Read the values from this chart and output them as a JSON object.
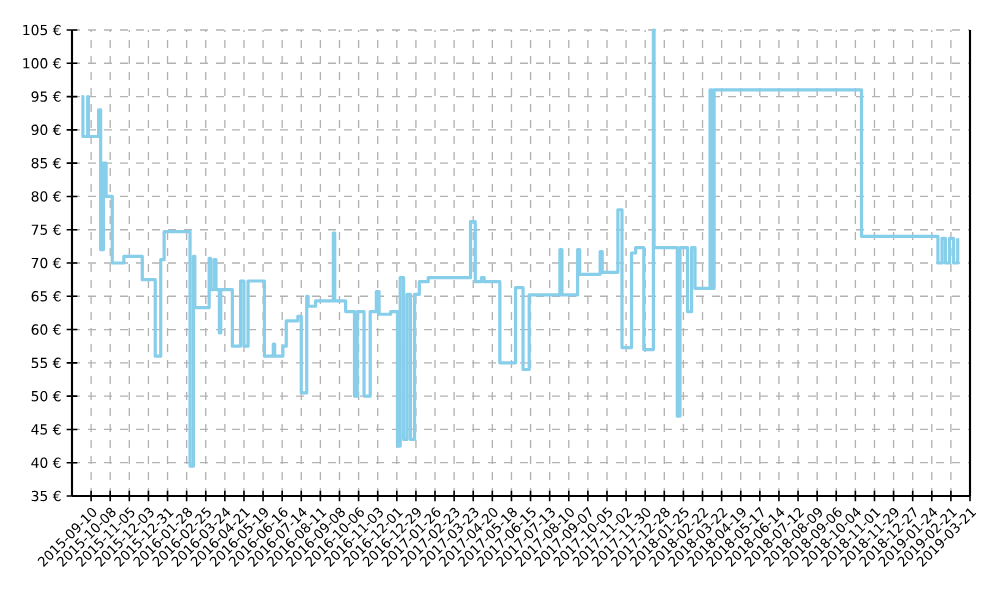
{
  "chart_data": {
    "type": "step",
    "xlim": [
      "2015-08-13",
      "2019-03-21"
    ],
    "ylim": [
      35,
      105
    ],
    "xticks": [
      "2015-09-10",
      "2015-10-08",
      "2015-11-05",
      "2015-12-03",
      "2015-12-31",
      "2016-01-28",
      "2016-02-25",
      "2016-03-24",
      "2016-04-21",
      "2016-05-19",
      "2016-06-16",
      "2016-07-14",
      "2016-08-11",
      "2016-09-08",
      "2016-10-06",
      "2016-11-03",
      "2016-12-01",
      "2016-12-29",
      "2017-01-26",
      "2017-02-23",
      "2017-03-23",
      "2017-04-20",
      "2017-05-18",
      "2017-06-15",
      "2017-07-13",
      "2017-08-10",
      "2017-09-07",
      "2017-10-05",
      "2017-11-02",
      "2017-11-30",
      "2017-12-28",
      "2018-01-25",
      "2018-02-22",
      "2018-03-22",
      "2018-04-19",
      "2018-05-17",
      "2018-06-14",
      "2018-07-12",
      "2018-08-09",
      "2018-09-06",
      "2018-10-04",
      "2018-11-01",
      "2018-11-29",
      "2018-12-27",
      "2019-01-24",
      "2019-02-21",
      "2019-03-21"
    ],
    "yticks": [
      {
        "value": 35,
        "label": "35 €"
      },
      {
        "value": 40,
        "label": "40 €"
      },
      {
        "value": 45,
        "label": "45 €"
      },
      {
        "value": 50,
        "label": "50 €"
      },
      {
        "value": 55,
        "label": "55 €"
      },
      {
        "value": 60,
        "label": "60 €"
      },
      {
        "value": 65,
        "label": "65 €"
      },
      {
        "value": 70,
        "label": "70 €"
      },
      {
        "value": 75,
        "label": "75 €"
      },
      {
        "value": 80,
        "label": "80 €"
      },
      {
        "value": 85,
        "label": "85 €"
      },
      {
        "value": 90,
        "label": "90 €"
      },
      {
        "value": 95,
        "label": "95 €"
      },
      {
        "value": 100,
        "label": "100 €"
      },
      {
        "value": 105,
        "label": "105 €"
      }
    ],
    "grid": true,
    "color": "#87ceeb",
    "x": [
      "2015-08-27",
      "2015-08-29",
      "2015-09-05",
      "2015-09-06",
      "2015-09-21",
      "2015-09-24",
      "2015-09-28",
      "2015-10-02",
      "2015-10-11",
      "2015-10-28",
      "2015-11-24",
      "2015-12-13",
      "2015-12-21",
      "2015-12-26",
      "2016-02-02",
      "2016-02-07",
      "2016-02-09",
      "2016-03-01",
      "2016-03-03",
      "2016-03-08",
      "2016-03-11",
      "2016-03-16",
      "2016-03-18",
      "2016-04-04",
      "2016-04-16",
      "2016-04-21",
      "2016-04-27",
      "2016-05-21",
      "2016-06-03",
      "2016-06-05",
      "2016-06-17",
      "2016-06-22",
      "2016-07-09",
      "2016-07-14",
      "2016-07-22",
      "2016-07-24",
      "2016-08-04",
      "2016-08-30",
      "2016-09-01",
      "2016-09-17",
      "2016-09-30",
      "2016-10-04",
      "2016-10-14",
      "2016-10-23",
      "2016-11-01",
      "2016-11-05",
      "2016-11-22",
      "2016-12-02",
      "2016-12-06",
      "2016-12-11",
      "2016-12-16",
      "2016-12-21",
      "2016-12-27",
      "2017-01-03",
      "2017-01-16",
      "2017-03-19",
      "2017-03-26",
      "2017-04-04",
      "2017-04-08",
      "2017-05-01",
      "2017-05-24",
      "2017-06-04",
      "2017-06-13",
      "2017-07-28",
      "2017-07-31",
      "2017-08-23",
      "2017-08-26",
      "2017-09-25",
      "2017-09-28",
      "2017-10-21",
      "2017-10-27",
      "2017-11-10",
      "2017-11-16",
      "2017-11-28",
      "2017-12-12",
      "2017-12-13",
      "2018-01-16",
      "2018-01-20",
      "2018-01-31",
      "2018-02-06",
      "2018-02-11",
      "2018-03-05",
      "2018-03-08",
      "2018-03-11",
      "2018-10-13",
      "2019-02-02",
      "2019-02-08",
      "2019-02-13",
      "2019-02-19",
      "2019-02-25",
      "2019-03-03"
    ],
    "values": [
      95,
      89,
      95,
      89,
      93,
      72,
      85,
      80,
      70,
      71,
      67.5,
      56,
      70.5,
      74.7,
      39.5,
      71,
      63.3,
      70.7,
      66,
      70.5,
      66,
      59.5,
      66,
      57.5,
      67.3,
      57.5,
      67.3,
      56,
      57.8,
      56,
      57.5,
      61.3,
      62,
      50.5,
      65,
      63.5,
      64.3,
      74.5,
      64.3,
      62.7,
      50,
      62.7,
      50,
      62.7,
      65.7,
      62.3,
      62.7,
      42.5,
      67.8,
      43.5,
      65.3,
      43.5,
      65.3,
      67.2,
      67.8,
      76.2,
      67.2,
      67.8,
      67.2,
      55,
      66.3,
      54,
      65.2,
      72,
      65.2,
      72,
      68.3,
      71.7,
      68.6,
      78,
      57.3,
      71.5,
      72.3,
      57,
      105,
      72.3,
      47,
      72.3,
      62.7,
      72.3,
      66.2,
      96,
      66.2,
      96,
      74,
      70,
      73.7,
      70,
      73.7,
      70,
      73.7
    ]
  }
}
